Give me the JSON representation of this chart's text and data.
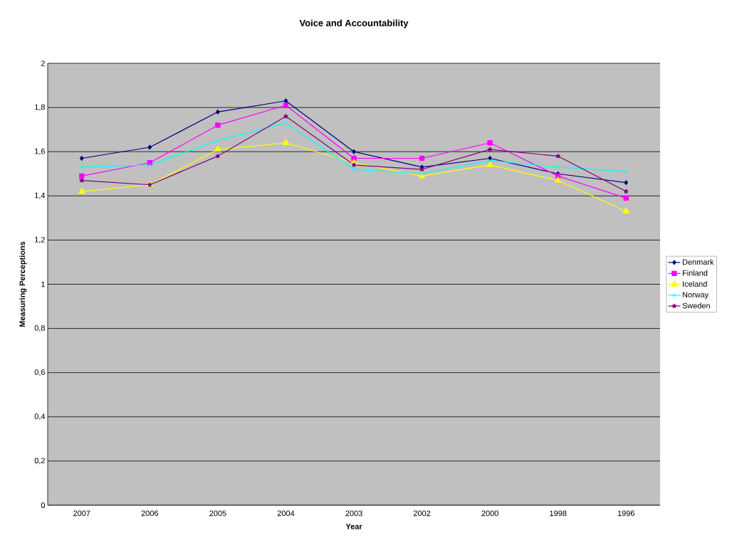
{
  "chart_data": {
    "type": "line",
    "title": "Voice and Accountability",
    "xlabel": "Year",
    "ylabel": "Measuring Perceptions",
    "categories": [
      "2007",
      "2006",
      "2005",
      "2004",
      "2003",
      "2002",
      "2000",
      "1998",
      "1996"
    ],
    "series": [
      {
        "name": "Denmark",
        "color": "#000080",
        "marker": "diamond",
        "values": [
          1.57,
          1.62,
          1.78,
          1.83,
          1.6,
          1.53,
          1.57,
          1.5,
          1.46
        ]
      },
      {
        "name": "Finland",
        "color": "#ff00ff",
        "marker": "square",
        "values": [
          1.49,
          1.55,
          1.72,
          1.81,
          1.57,
          1.57,
          1.64,
          1.49,
          1.39
        ]
      },
      {
        "name": "Iceland",
        "color": "#ffff00",
        "marker": "triangle",
        "values": [
          1.42,
          1.45,
          1.61,
          1.64,
          1.55,
          1.49,
          1.54,
          1.47,
          1.33
        ]
      },
      {
        "name": "Norway",
        "color": "#00ffff",
        "marker": "cross",
        "values": [
          1.53,
          1.54,
          1.65,
          1.73,
          1.52,
          1.5,
          1.56,
          1.53,
          1.51
        ]
      },
      {
        "name": "Sweden",
        "color": "#800080",
        "marker": "star",
        "values": [
          1.47,
          1.45,
          1.58,
          1.76,
          1.54,
          1.52,
          1.61,
          1.58,
          1.42
        ]
      }
    ],
    "ylim": [
      0,
      2
    ],
    "yticks": [
      0,
      {
        "value": 0.2,
        "label": "0,2"
      },
      {
        "value": 0.4,
        "label": "0,4"
      },
      {
        "value": 0.6,
        "label": "0,6"
      },
      {
        "value": 0.8,
        "label": "0,8"
      },
      1,
      {
        "value": 1.2,
        "label": "1,2"
      },
      {
        "value": 1.4,
        "label": "1,4"
      },
      {
        "value": 1.6,
        "label": "1,6"
      },
      {
        "value": 1.8,
        "label": "1,8"
      },
      2
    ],
    "grid": "y",
    "legend": "right",
    "line_style": "solid"
  }
}
